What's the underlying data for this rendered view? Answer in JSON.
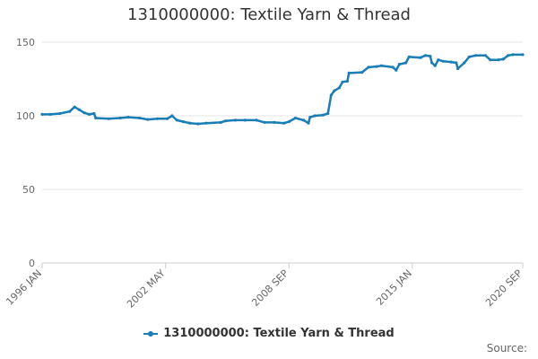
{
  "chart_data": {
    "type": "line",
    "title": "1310000000: Textile Yarn & Thread",
    "series": [
      {
        "name": "1310000000: Textile Yarn & Thread",
        "points": [
          [
            "1996-01",
            101
          ],
          [
            "1996-06",
            101
          ],
          [
            "1996-12",
            101.5
          ],
          [
            "1997-06",
            103
          ],
          [
            "1997-09",
            106
          ],
          [
            "1997-12",
            104
          ],
          [
            "1998-03",
            102
          ],
          [
            "1998-06",
            101
          ],
          [
            "1998-09",
            101.5
          ],
          [
            "1998-10",
            98.5
          ],
          [
            "1999-06",
            98
          ],
          [
            "2000-01",
            98.5
          ],
          [
            "2000-06",
            99
          ],
          [
            "2001-01",
            98.5
          ],
          [
            "2001-06",
            97.5
          ],
          [
            "2001-12",
            98
          ],
          [
            "2002-06",
            98
          ],
          [
            "2002-09",
            100
          ],
          [
            "2002-12",
            97
          ],
          [
            "2003-04",
            96
          ],
          [
            "2003-08",
            95
          ],
          [
            "2004-01",
            94.5
          ],
          [
            "2004-06",
            95
          ],
          [
            "2005-03",
            95.5
          ],
          [
            "2005-06",
            96.5
          ],
          [
            "2005-12",
            97
          ],
          [
            "2006-06",
            97
          ],
          [
            "2007-01",
            97
          ],
          [
            "2007-06",
            95.5
          ],
          [
            "2007-12",
            95.5
          ],
          [
            "2008-06",
            95
          ],
          [
            "2008-09",
            96
          ],
          [
            "2009-01",
            98.5
          ],
          [
            "2009-06",
            97
          ],
          [
            "2009-09",
            95
          ],
          [
            "2009-10",
            99
          ],
          [
            "2010-01",
            100
          ],
          [
            "2010-06",
            100.5
          ],
          [
            "2010-09",
            101.5
          ],
          [
            "2010-11",
            114
          ],
          [
            "2011-01",
            117
          ],
          [
            "2011-04",
            119
          ],
          [
            "2011-06",
            123
          ],
          [
            "2011-09",
            123.5
          ],
          [
            "2011-10",
            129
          ],
          [
            "2012-06",
            129.5
          ],
          [
            "2012-10",
            133
          ],
          [
            "2013-03",
            133.5
          ],
          [
            "2013-06",
            134
          ],
          [
            "2014-01",
            133
          ],
          [
            "2014-03",
            131
          ],
          [
            "2014-05",
            135
          ],
          [
            "2014-09",
            136
          ],
          [
            "2014-11",
            140
          ],
          [
            "2015-06",
            139.5
          ],
          [
            "2015-09",
            141
          ],
          [
            "2015-12",
            140.5
          ],
          [
            "2016-01",
            136
          ],
          [
            "2016-03",
            134
          ],
          [
            "2016-05",
            138
          ],
          [
            "2016-08",
            137
          ],
          [
            "2017-01",
            136.5
          ],
          [
            "2017-04",
            136
          ],
          [
            "2017-05",
            132
          ],
          [
            "2017-09",
            136
          ],
          [
            "2017-12",
            140
          ],
          [
            "2018-04",
            141
          ],
          [
            "2018-10",
            141
          ],
          [
            "2019-01",
            138
          ],
          [
            "2019-06",
            138
          ],
          [
            "2019-09",
            138.5
          ],
          [
            "2019-12",
            141
          ],
          [
            "2020-03",
            141.5
          ],
          [
            "2020-09",
            141.5
          ]
        ]
      }
    ],
    "x_ticks": [
      "1996 JAN",
      "2002 MAY",
      "2008 SEP",
      "2015 JAN",
      "2020 SEP"
    ],
    "xlim": [
      "1996-01",
      "2020-09"
    ],
    "y_ticks": [
      0,
      50,
      100,
      150
    ],
    "ylim": [
      0,
      150
    ],
    "grid": "horizontal",
    "legend_position": "bottom-center",
    "colors": {
      "series": "#1a7db6",
      "grid": "#e6e6e6",
      "axis": "#cccccc"
    }
  },
  "footer": {
    "source_label": "Source:"
  }
}
